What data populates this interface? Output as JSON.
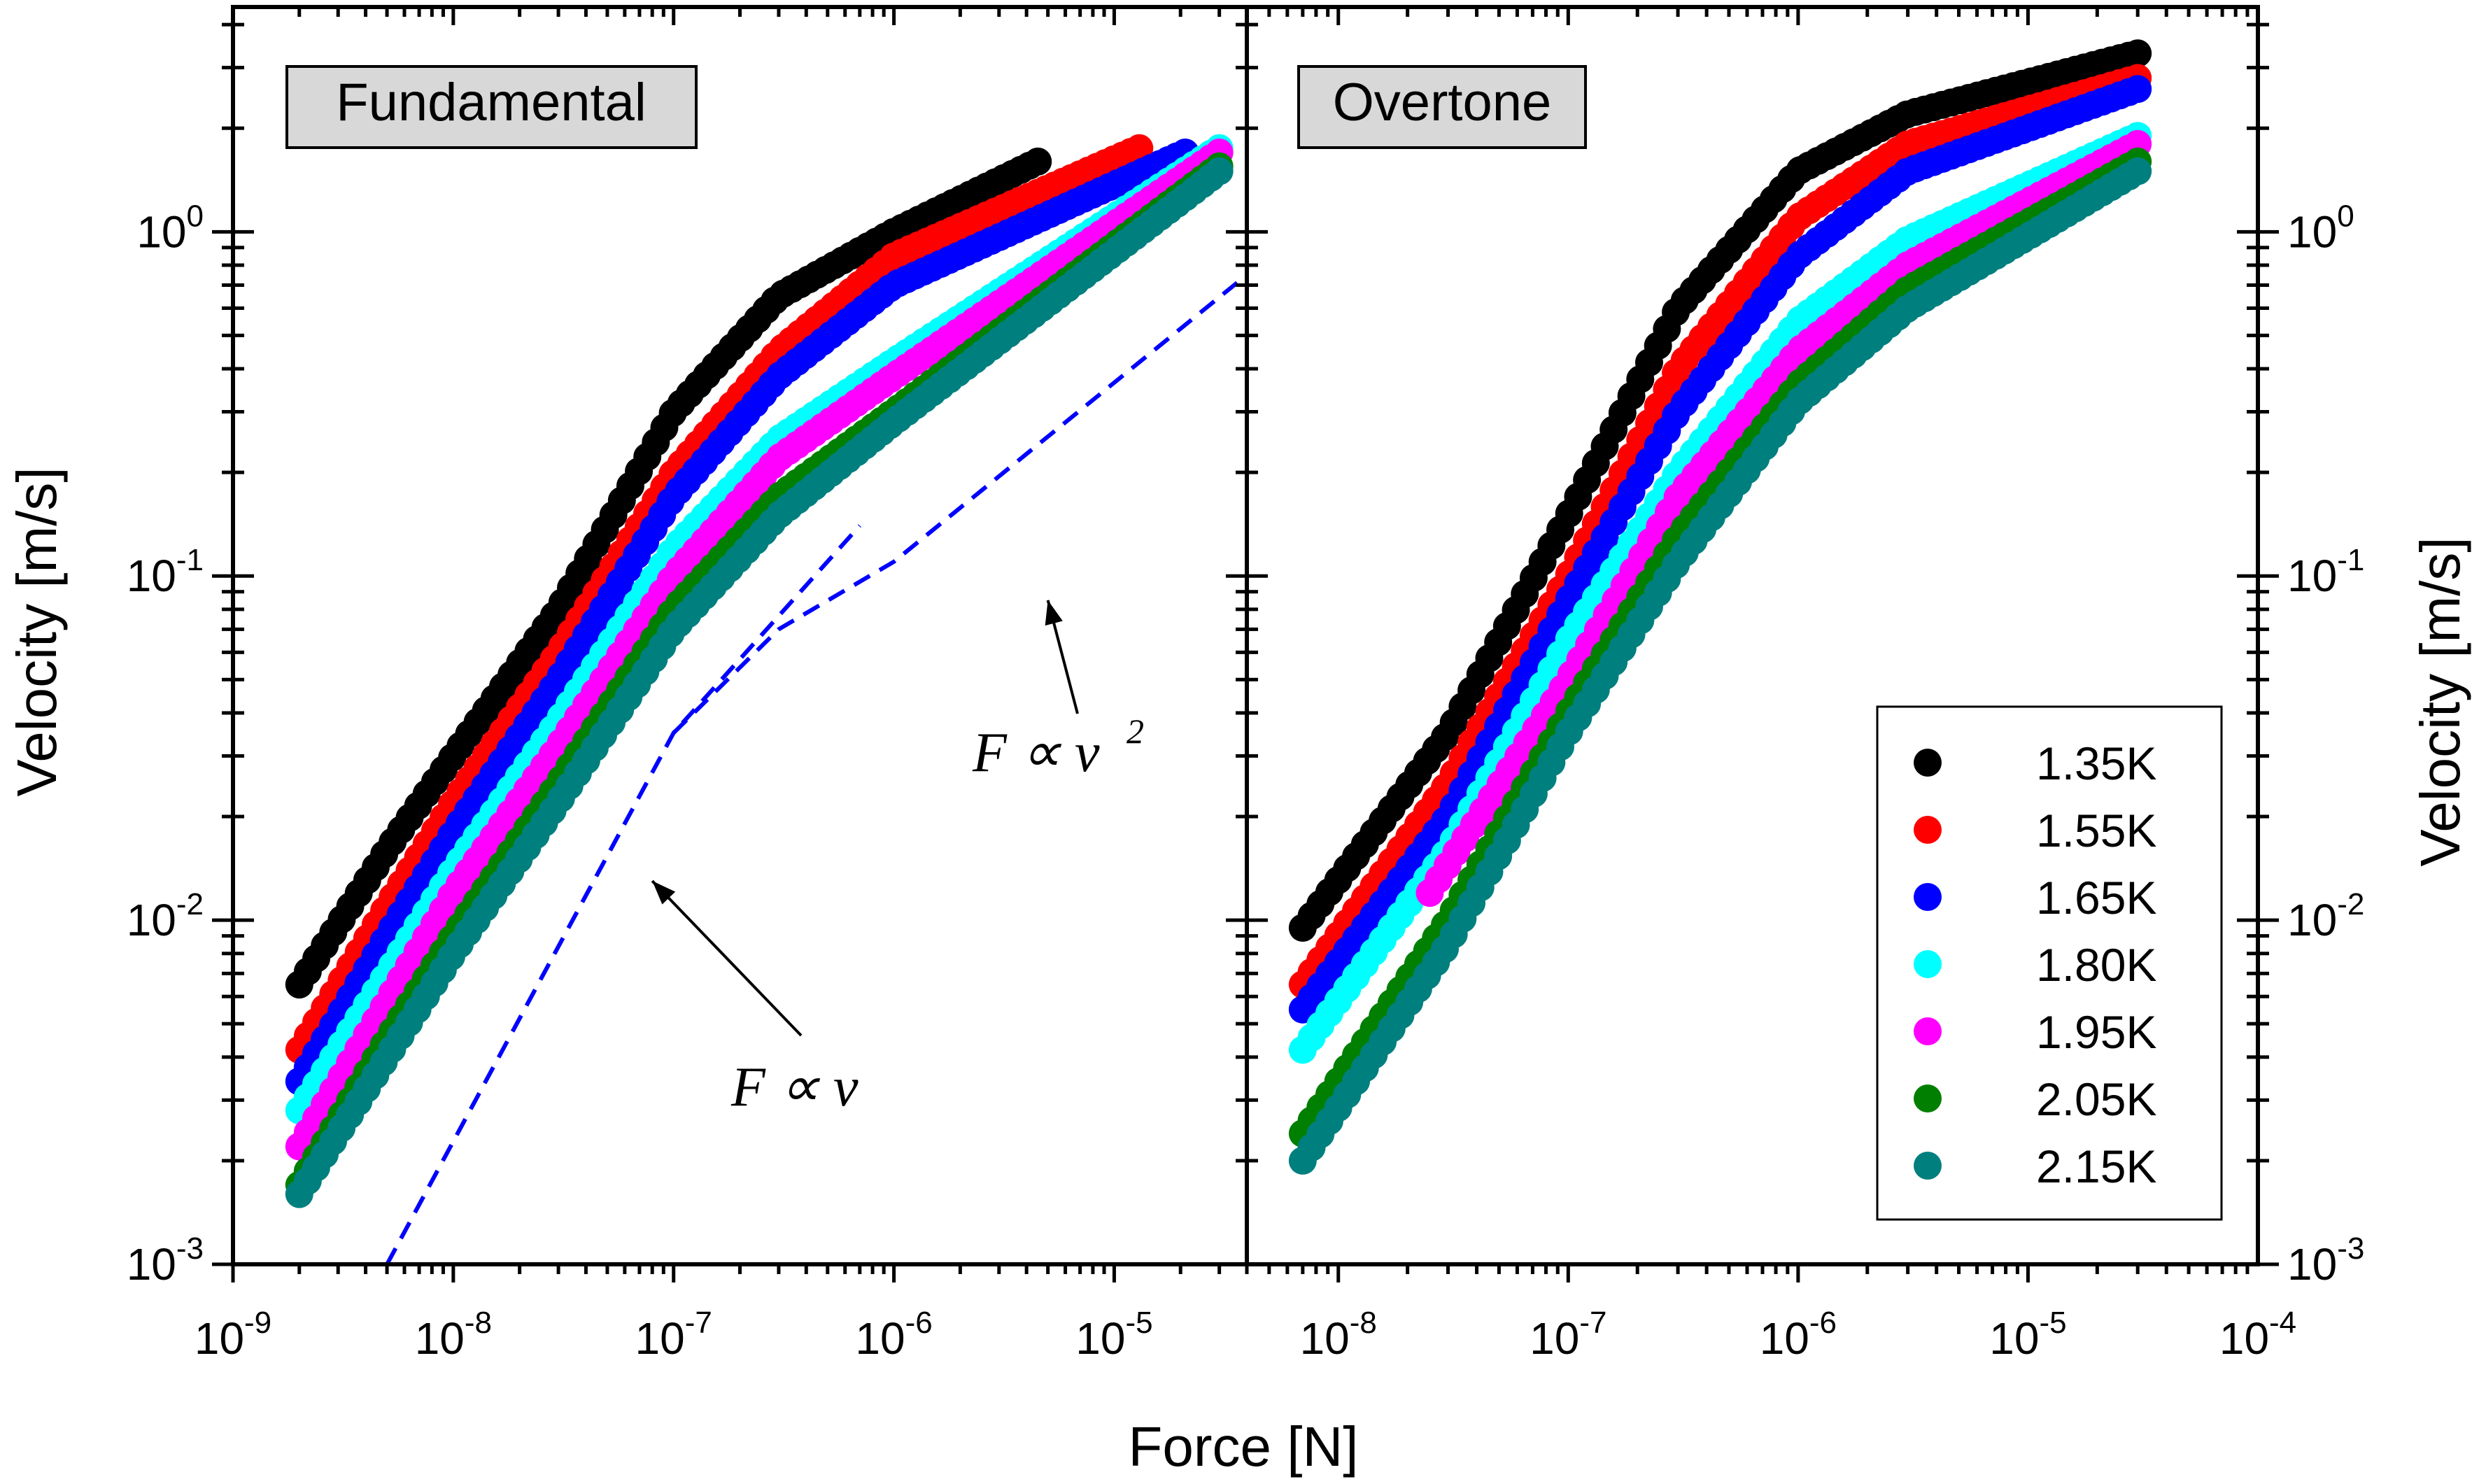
{
  "chart_data": {
    "type": "scatter",
    "xlabel": "Force [N]",
    "ylabel": "Velocity [m/s]",
    "y_scale": "log",
    "x_scale": "log",
    "ylim": [
      0.001,
      4.5
    ],
    "legend_placement": "bottom-right of right panel",
    "grid": false,
    "legend_colors": {
      "1.35K": "#000000",
      "1.55K": "#ff0000",
      "1.65K": "#0000ff",
      "1.80K": "#00ffff",
      "1.95K": "#ff00ff",
      "2.05K": "#007f00",
      "2.15K": "#007f7f"
    },
    "panels": [
      {
        "id": "fundamental",
        "title": "Fundamental",
        "xlim": [
          1e-09,
          4e-05
        ],
        "x_ticks": [
          {
            "value": 1e-09,
            "base": "10",
            "exp": "-9"
          },
          {
            "value": 1e-08,
            "base": "10",
            "exp": "-8"
          },
          {
            "value": 1e-07,
            "base": "10",
            "exp": "-7"
          },
          {
            "value": 1e-06,
            "base": "10",
            "exp": "-6"
          },
          {
            "value": 1e-05,
            "base": "10",
            "exp": "-5"
          }
        ],
        "y_ticks_left": [
          {
            "value": 0.001,
            "base": "10",
            "exp": "-3"
          },
          {
            "value": 0.01,
            "base": "10",
            "exp": "-2"
          },
          {
            "value": 0.1,
            "base": "10",
            "exp": "-1"
          },
          {
            "value": 1,
            "base": "10",
            "exp": "0"
          }
        ],
        "series": [
          {
            "name": "1.35K",
            "color": "#000000",
            "x_start": 2e-09,
            "x_end": 4.5e-06,
            "points": [
              [
                2e-09,
                0.0065
              ],
              [
                5e-09,
                0.016
              ],
              [
                1e-08,
                0.03
              ],
              [
                3e-08,
                0.08
              ],
              [
                1e-07,
                0.3
              ],
              [
                3e-07,
                0.65
              ],
              [
                1e-06,
                1.0
              ],
              [
                4.5e-06,
                1.6
              ]
            ]
          },
          {
            "name": "1.55K",
            "color": "#ff0000",
            "x_start": 2e-09,
            "x_end": 1.3e-05,
            "points": [
              [
                2e-09,
                0.0042
              ],
              [
                5e-09,
                0.011
              ],
              [
                1e-08,
                0.022
              ],
              [
                3e-08,
                0.06
              ],
              [
                1e-07,
                0.2
              ],
              [
                3e-07,
                0.45
              ],
              [
                1e-06,
                0.85
              ],
              [
                1.3e-05,
                1.75
              ]
            ]
          },
          {
            "name": "1.65K",
            "color": "#0000ff",
            "x_start": 2e-09,
            "x_end": 2.1e-05,
            "points": [
              [
                2e-09,
                0.0034
              ],
              [
                5e-09,
                0.009
              ],
              [
                1e-08,
                0.018
              ],
              [
                3e-08,
                0.05
              ],
              [
                1e-07,
                0.17
              ],
              [
                3e-07,
                0.38
              ],
              [
                1e-06,
                0.7
              ],
              [
                2.1e-05,
                1.7
              ]
            ]
          },
          {
            "name": "1.80K",
            "color": "#00ffff",
            "x_start": 2e-09,
            "x_end": 3e-05,
            "points": [
              [
                2e-09,
                0.0028
              ],
              [
                5e-09,
                0.007
              ],
              [
                1e-08,
                0.014
              ],
              [
                3e-08,
                0.038
              ],
              [
                1e-07,
                0.12
              ],
              [
                3e-07,
                0.25
              ],
              [
                1e-06,
                0.42
              ],
              [
                3e-05,
                1.75
              ]
            ]
          },
          {
            "name": "1.95K",
            "color": "#ff00ff",
            "x_start": 2e-09,
            "x_end": 3e-05,
            "points": [
              [
                2e-09,
                0.0022
              ],
              [
                5e-09,
                0.0058
              ],
              [
                1e-08,
                0.012
              ],
              [
                3e-08,
                0.032
              ],
              [
                1e-07,
                0.1
              ],
              [
                3e-07,
                0.22
              ],
              [
                1e-06,
                0.38
              ],
              [
                3e-05,
                1.7
              ]
            ]
          },
          {
            "name": "2.05K",
            "color": "#007f00",
            "x_start": 2e-09,
            "x_end": 3e-05,
            "points": [
              [
                2e-09,
                0.0017
              ],
              [
                5e-09,
                0.0045
              ],
              [
                1e-08,
                0.009
              ],
              [
                3e-08,
                0.025
              ],
              [
                1e-07,
                0.08
              ],
              [
                3e-07,
                0.17
              ],
              [
                1e-06,
                0.3
              ],
              [
                3e-05,
                1.55
              ]
            ]
          },
          {
            "name": "2.15K",
            "color": "#007f7f",
            "x_start": 2e-09,
            "x_end": 3e-05,
            "points": [
              [
                2e-09,
                0.0016
              ],
              [
                5e-09,
                0.004
              ],
              [
                1e-08,
                0.008
              ],
              [
                3e-08,
                0.022
              ],
              [
                1e-07,
                0.07
              ],
              [
                3e-07,
                0.15
              ],
              [
                1e-06,
                0.28
              ],
              [
                3e-05,
                1.5
              ]
            ]
          }
        ],
        "reference_lines": [
          {
            "id": "linear",
            "points": [
              [
                5e-09,
                0.001
              ],
              [
                1e-07,
                0.035
              ],
              [
                7e-07,
                0.14
              ]
            ]
          },
          {
            "id": "quadratic",
            "points": [
              [
                1e-07,
                0.035
              ],
              [
                3e-07,
                0.07
              ],
              [
                1e-06,
                0.11
              ],
              [
                4e-05,
                0.75
              ]
            ]
          }
        ],
        "annotations": [
          {
            "id": "linear-label",
            "text": "F ∝ v",
            "arrow_to": [
              8e-08,
              0.013
            ]
          },
          {
            "id": "quadratic-label",
            "text": "F ∝ v",
            "superscript": "2",
            "arrow_to": [
              5e-06,
              0.085
            ]
          }
        ]
      },
      {
        "id": "overtone",
        "title": "Overtone",
        "xlim": [
          4e-09,
          0.0001
        ],
        "x_ticks": [
          {
            "value": 1e-08,
            "base": "10",
            "exp": "-8"
          },
          {
            "value": 1e-07,
            "base": "10",
            "exp": "-7"
          },
          {
            "value": 1e-06,
            "base": "10",
            "exp": "-6"
          },
          {
            "value": 1e-05,
            "base": "10",
            "exp": "-5"
          },
          {
            "value": 0.0001,
            "base": "10",
            "exp": "-4"
          }
        ],
        "y_ticks_right": [
          {
            "value": 0.001,
            "base": "10",
            "exp": "-3"
          },
          {
            "value": 0.01,
            "base": "10",
            "exp": "-2"
          },
          {
            "value": 0.1,
            "base": "10",
            "exp": "-1"
          },
          {
            "value": 1,
            "base": "10",
            "exp": "0"
          }
        ],
        "series": [
          {
            "name": "1.35K",
            "color": "#000000",
            "x_start": 7e-09,
            "x_end": 3e-05,
            "points": [
              [
                7e-09,
                0.0095
              ],
              [
                3e-08,
                0.035
              ],
              [
                1e-07,
                0.15
              ],
              [
                3e-07,
                0.6
              ],
              [
                1e-06,
                1.5
              ],
              [
                3e-06,
                2.2
              ],
              [
                3e-05,
                3.3
              ]
            ]
          },
          {
            "name": "1.55K",
            "color": "#ff0000",
            "x_start": 7e-09,
            "x_end": 3e-05,
            "points": [
              [
                7e-09,
                0.0065
              ],
              [
                3e-08,
                0.025
              ],
              [
                1e-07,
                0.1
              ],
              [
                3e-07,
                0.4
              ],
              [
                1e-06,
                1.1
              ],
              [
                3e-06,
                1.8
              ],
              [
                3e-05,
                2.8
              ]
            ]
          },
          {
            "name": "1.65K",
            "color": "#0000ff",
            "x_start": 7e-09,
            "x_end": 3e-05,
            "points": [
              [
                7e-09,
                0.0055
              ],
              [
                3e-08,
                0.02
              ],
              [
                1e-07,
                0.085
              ],
              [
                3e-07,
                0.3
              ],
              [
                1e-06,
                0.85
              ],
              [
                3e-06,
                1.5
              ],
              [
                3e-05,
                2.6
              ]
            ]
          },
          {
            "name": "1.80K",
            "color": "#00ffff",
            "x_start": 7e-09,
            "x_end": 3e-05,
            "points": [
              [
                7e-09,
                0.0042
              ],
              [
                3e-08,
                0.016
              ],
              [
                1e-07,
                0.065
              ],
              [
                3e-07,
                0.2
              ],
              [
                1e-06,
                0.55
              ],
              [
                3e-06,
                0.95
              ],
              [
                3e-05,
                1.9
              ]
            ]
          },
          {
            "name": "1.95K",
            "color": "#ff00ff",
            "x_start": 2.5e-08,
            "x_end": 3e-05,
            "points": [
              [
                2.5e-08,
                0.012
              ],
              [
                1e-07,
                0.05
              ],
              [
                3e-07,
                0.17
              ],
              [
                1e-06,
                0.45
              ],
              [
                3e-06,
                0.8
              ],
              [
                3e-05,
                1.8
              ]
            ]
          },
          {
            "name": "2.05K",
            "color": "#007f00",
            "x_start": 7e-09,
            "x_end": 3e-05,
            "points": [
              [
                7e-09,
                0.0024
              ],
              [
                3e-08,
                0.01
              ],
              [
                1e-07,
                0.04
              ],
              [
                3e-07,
                0.13
              ],
              [
                1e-06,
                0.36
              ],
              [
                3e-06,
                0.68
              ],
              [
                3e-05,
                1.6
              ]
            ]
          },
          {
            "name": "2.15K",
            "color": "#007f7f",
            "x_start": 7e-09,
            "x_end": 3e-05,
            "points": [
              [
                7e-09,
                0.002
              ],
              [
                3e-08,
                0.0085
              ],
              [
                1e-07,
                0.035
              ],
              [
                3e-07,
                0.11
              ],
              [
                1e-06,
                0.32
              ],
              [
                3e-06,
                0.6
              ],
              [
                3e-05,
                1.5
              ]
            ]
          }
        ]
      }
    ]
  }
}
